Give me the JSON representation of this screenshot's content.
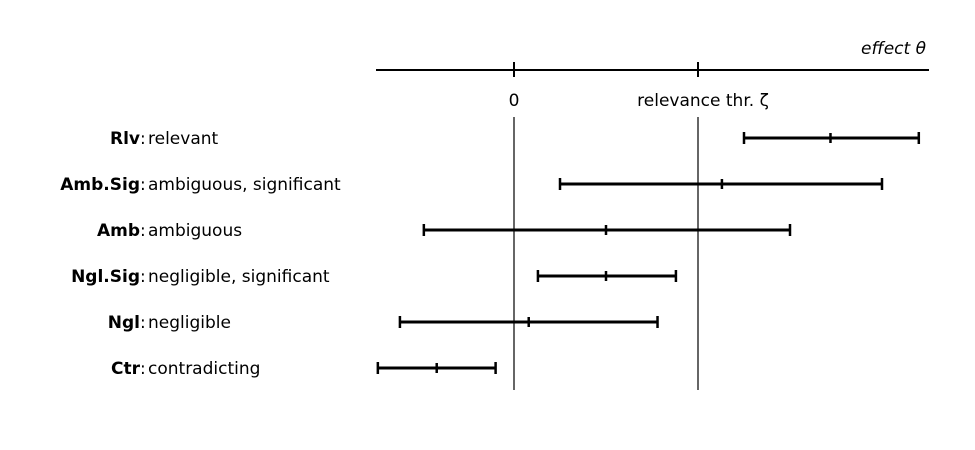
{
  "axis": {
    "label": "effect θ",
    "ticks": [
      {
        "label": "0",
        "value": 0
      },
      {
        "label": "relevance thr. ζ",
        "value": 1
      }
    ]
  },
  "categories": [
    {
      "abbr": "Rlv",
      "desc": "relevant",
      "low": 1.25,
      "est": 1.72,
      "high": 2.2
    },
    {
      "abbr": "Amb.Sig",
      "desc": "ambiguous, significant",
      "low": 0.25,
      "est": 1.13,
      "high": 2.0
    },
    {
      "abbr": "Amb",
      "desc": "ambiguous",
      "low": -0.49,
      "est": 0.5,
      "high": 1.5
    },
    {
      "abbr": "Ngl.Sig",
      "desc": "negligible, significant",
      "low": 0.13,
      "est": 0.5,
      "high": 0.88
    },
    {
      "abbr": "Ngl",
      "desc": "negligible",
      "low": -0.62,
      "est": 0.08,
      "high": 0.78
    },
    {
      "abbr": "Ctr",
      "desc": "contradicting",
      "low": -0.74,
      "est": -0.42,
      "high": -0.1
    }
  ]
}
